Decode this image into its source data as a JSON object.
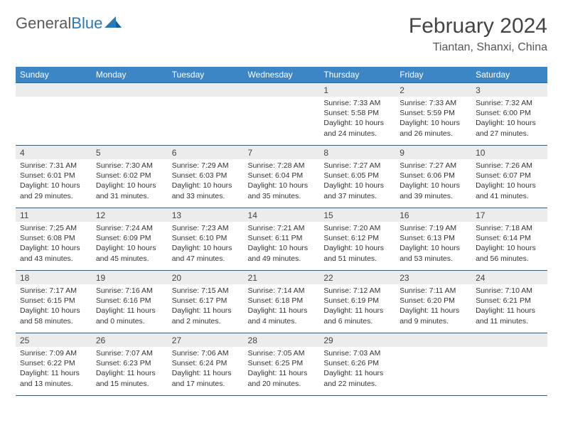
{
  "brand": {
    "part1": "General",
    "part2": "Blue"
  },
  "title": "February 2024",
  "location": "Tiantan, Shanxi, China",
  "colors": {
    "header_bg": "#3d86c6",
    "header_text": "#ffffff",
    "daynum_bg": "#ececec",
    "border": "#3d5a75",
    "logo_blue": "#2a7ab9",
    "text": "#333333"
  },
  "typography": {
    "title_fontsize": 30,
    "location_fontsize": 16,
    "dayheader_fontsize": 12,
    "cell_fontsize": 10.5
  },
  "day_headers": [
    "Sunday",
    "Monday",
    "Tuesday",
    "Wednesday",
    "Thursday",
    "Friday",
    "Saturday"
  ],
  "weeks": [
    [
      null,
      null,
      null,
      null,
      {
        "n": "1",
        "sr": "Sunrise: 7:33 AM",
        "ss": "Sunset: 5:58 PM",
        "dl": "Daylight: 10 hours and 24 minutes."
      },
      {
        "n": "2",
        "sr": "Sunrise: 7:33 AM",
        "ss": "Sunset: 5:59 PM",
        "dl": "Daylight: 10 hours and 26 minutes."
      },
      {
        "n": "3",
        "sr": "Sunrise: 7:32 AM",
        "ss": "Sunset: 6:00 PM",
        "dl": "Daylight: 10 hours and 27 minutes."
      }
    ],
    [
      {
        "n": "4",
        "sr": "Sunrise: 7:31 AM",
        "ss": "Sunset: 6:01 PM",
        "dl": "Daylight: 10 hours and 29 minutes."
      },
      {
        "n": "5",
        "sr": "Sunrise: 7:30 AM",
        "ss": "Sunset: 6:02 PM",
        "dl": "Daylight: 10 hours and 31 minutes."
      },
      {
        "n": "6",
        "sr": "Sunrise: 7:29 AM",
        "ss": "Sunset: 6:03 PM",
        "dl": "Daylight: 10 hours and 33 minutes."
      },
      {
        "n": "7",
        "sr": "Sunrise: 7:28 AM",
        "ss": "Sunset: 6:04 PM",
        "dl": "Daylight: 10 hours and 35 minutes."
      },
      {
        "n": "8",
        "sr": "Sunrise: 7:27 AM",
        "ss": "Sunset: 6:05 PM",
        "dl": "Daylight: 10 hours and 37 minutes."
      },
      {
        "n": "9",
        "sr": "Sunrise: 7:27 AM",
        "ss": "Sunset: 6:06 PM",
        "dl": "Daylight: 10 hours and 39 minutes."
      },
      {
        "n": "10",
        "sr": "Sunrise: 7:26 AM",
        "ss": "Sunset: 6:07 PM",
        "dl": "Daylight: 10 hours and 41 minutes."
      }
    ],
    [
      {
        "n": "11",
        "sr": "Sunrise: 7:25 AM",
        "ss": "Sunset: 6:08 PM",
        "dl": "Daylight: 10 hours and 43 minutes."
      },
      {
        "n": "12",
        "sr": "Sunrise: 7:24 AM",
        "ss": "Sunset: 6:09 PM",
        "dl": "Daylight: 10 hours and 45 minutes."
      },
      {
        "n": "13",
        "sr": "Sunrise: 7:23 AM",
        "ss": "Sunset: 6:10 PM",
        "dl": "Daylight: 10 hours and 47 minutes."
      },
      {
        "n": "14",
        "sr": "Sunrise: 7:21 AM",
        "ss": "Sunset: 6:11 PM",
        "dl": "Daylight: 10 hours and 49 minutes."
      },
      {
        "n": "15",
        "sr": "Sunrise: 7:20 AM",
        "ss": "Sunset: 6:12 PM",
        "dl": "Daylight: 10 hours and 51 minutes."
      },
      {
        "n": "16",
        "sr": "Sunrise: 7:19 AM",
        "ss": "Sunset: 6:13 PM",
        "dl": "Daylight: 10 hours and 53 minutes."
      },
      {
        "n": "17",
        "sr": "Sunrise: 7:18 AM",
        "ss": "Sunset: 6:14 PM",
        "dl": "Daylight: 10 hours and 56 minutes."
      }
    ],
    [
      {
        "n": "18",
        "sr": "Sunrise: 7:17 AM",
        "ss": "Sunset: 6:15 PM",
        "dl": "Daylight: 10 hours and 58 minutes."
      },
      {
        "n": "19",
        "sr": "Sunrise: 7:16 AM",
        "ss": "Sunset: 6:16 PM",
        "dl": "Daylight: 11 hours and 0 minutes."
      },
      {
        "n": "20",
        "sr": "Sunrise: 7:15 AM",
        "ss": "Sunset: 6:17 PM",
        "dl": "Daylight: 11 hours and 2 minutes."
      },
      {
        "n": "21",
        "sr": "Sunrise: 7:14 AM",
        "ss": "Sunset: 6:18 PM",
        "dl": "Daylight: 11 hours and 4 minutes."
      },
      {
        "n": "22",
        "sr": "Sunrise: 7:12 AM",
        "ss": "Sunset: 6:19 PM",
        "dl": "Daylight: 11 hours and 6 minutes."
      },
      {
        "n": "23",
        "sr": "Sunrise: 7:11 AM",
        "ss": "Sunset: 6:20 PM",
        "dl": "Daylight: 11 hours and 9 minutes."
      },
      {
        "n": "24",
        "sr": "Sunrise: 7:10 AM",
        "ss": "Sunset: 6:21 PM",
        "dl": "Daylight: 11 hours and 11 minutes."
      }
    ],
    [
      {
        "n": "25",
        "sr": "Sunrise: 7:09 AM",
        "ss": "Sunset: 6:22 PM",
        "dl": "Daylight: 11 hours and 13 minutes."
      },
      {
        "n": "26",
        "sr": "Sunrise: 7:07 AM",
        "ss": "Sunset: 6:23 PM",
        "dl": "Daylight: 11 hours and 15 minutes."
      },
      {
        "n": "27",
        "sr": "Sunrise: 7:06 AM",
        "ss": "Sunset: 6:24 PM",
        "dl": "Daylight: 11 hours and 17 minutes."
      },
      {
        "n": "28",
        "sr": "Sunrise: 7:05 AM",
        "ss": "Sunset: 6:25 PM",
        "dl": "Daylight: 11 hours and 20 minutes."
      },
      {
        "n": "29",
        "sr": "Sunrise: 7:03 AM",
        "ss": "Sunset: 6:26 PM",
        "dl": "Daylight: 11 hours and 22 minutes."
      },
      null,
      null
    ]
  ]
}
